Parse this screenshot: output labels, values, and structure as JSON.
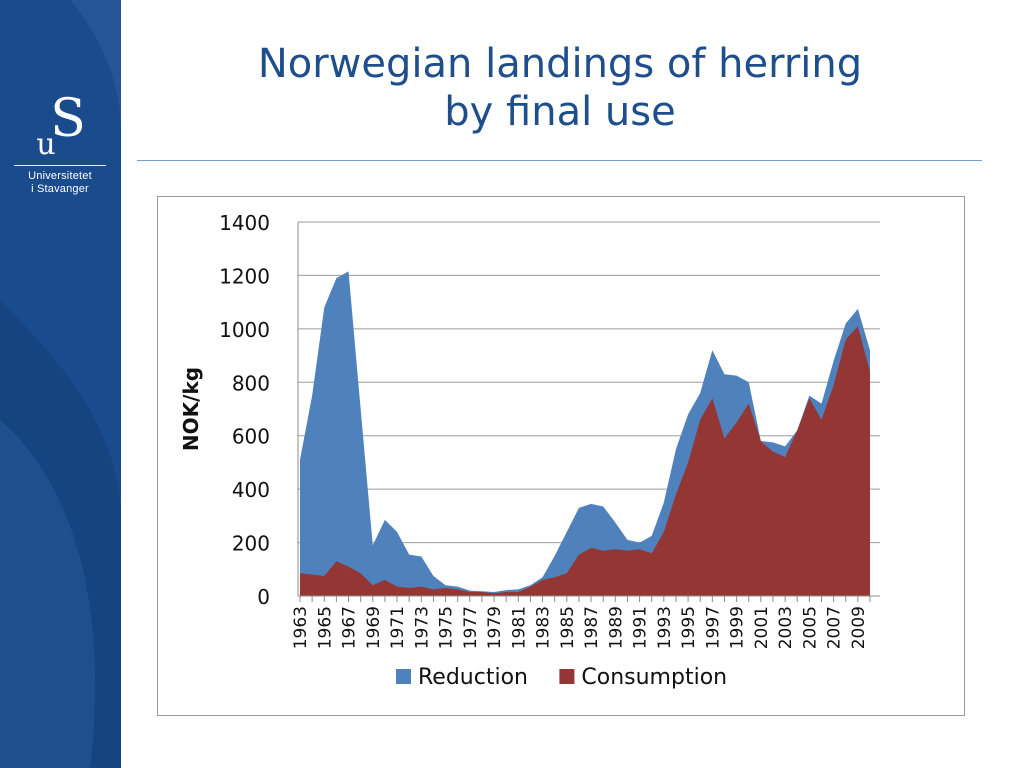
{
  "slide": {
    "title_line1": "Norwegian landings of herring",
    "title_line2": "by final use"
  },
  "logo": {
    "line1": "Universitetet",
    "line2": "i Stavanger"
  },
  "colors": {
    "sidebar": "#1a4b8c",
    "title": "#1f4e8c",
    "reduction": "#4f81bd",
    "consumption": "#943634"
  },
  "chart_data": {
    "type": "area",
    "stacked": false,
    "ylabel": "NOK/kg",
    "xlabel": "",
    "ylim": [
      0,
      1400
    ],
    "yticks": [
      0,
      200,
      400,
      600,
      800,
      1000,
      1200,
      1400
    ],
    "grid": true,
    "legend_position": "bottom",
    "x": [
      1963,
      1964,
      1965,
      1966,
      1967,
      1968,
      1969,
      1970,
      1971,
      1972,
      1973,
      1974,
      1975,
      1976,
      1977,
      1978,
      1979,
      1980,
      1981,
      1982,
      1983,
      1984,
      1985,
      1986,
      1987,
      1988,
      1989,
      1990,
      1991,
      1992,
      1993,
      1994,
      1995,
      1996,
      1997,
      1998,
      1999,
      2000,
      2001,
      2002,
      2003,
      2004,
      2005,
      2006,
      2007,
      2008,
      2009,
      2010
    ],
    "x_tick_labels": [
      "1963",
      "1965",
      "1967",
      "1969",
      "1971",
      "1973",
      "1975",
      "1977",
      "1979",
      "1981",
      "1983",
      "1985",
      "1987",
      "1989",
      "1991",
      "1993",
      "1995",
      "1997",
      "1999",
      "2001",
      "2003",
      "2005",
      "2007",
      "2009"
    ],
    "series": [
      {
        "name": "Reduction",
        "values": [
          510,
          750,
          1080,
          1190,
          1215,
          700,
          190,
          285,
          240,
          155,
          148,
          75,
          40,
          35,
          20,
          18,
          15,
          22,
          25,
          40,
          70,
          150,
          240,
          330,
          345,
          335,
          275,
          210,
          200,
          225,
          350,
          550,
          680,
          760,
          920,
          830,
          825,
          800,
          580,
          575,
          560,
          620,
          750,
          720,
          880,
          1020,
          1075,
          920
        ]
      },
      {
        "name": "Consumption",
        "values": [
          85,
          80,
          75,
          130,
          110,
          85,
          40,
          60,
          35,
          30,
          35,
          25,
          30,
          25,
          15,
          15,
          10,
          15,
          15,
          35,
          60,
          70,
          85,
          155,
          180,
          170,
          175,
          170,
          175,
          160,
          240,
          380,
          500,
          660,
          740,
          590,
          650,
          720,
          580,
          540,
          520,
          620,
          740,
          660,
          790,
          960,
          1010,
          840
        ]
      }
    ]
  }
}
